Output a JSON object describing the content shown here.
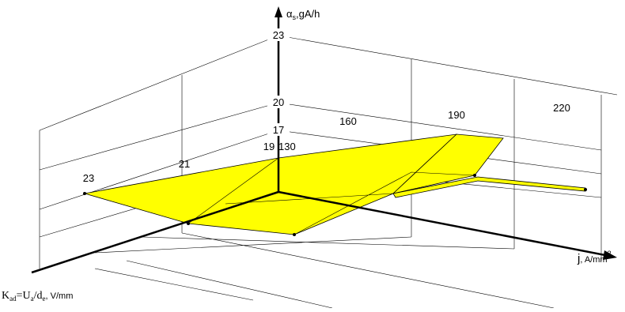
{
  "chart_data": {
    "type": "surface3d",
    "z_label": {
      "main": "α",
      "sub": "s",
      "rest": ",gA/h"
    },
    "x_label": {
      "main": "j",
      "rest": ", A/mm",
      "sup": "2"
    },
    "y_label": {
      "k": "K",
      "ksub": "ad",
      "eq": "=U",
      "usub": "a",
      "slash": "/d",
      "dsub": "e",
      "rest": ", V/mm"
    },
    "zticks": [
      17,
      20,
      23
    ],
    "xticks": [
      130,
      160,
      190,
      220
    ],
    "yticks": [
      19,
      21,
      23
    ],
    "color": "#ffff00"
  }
}
